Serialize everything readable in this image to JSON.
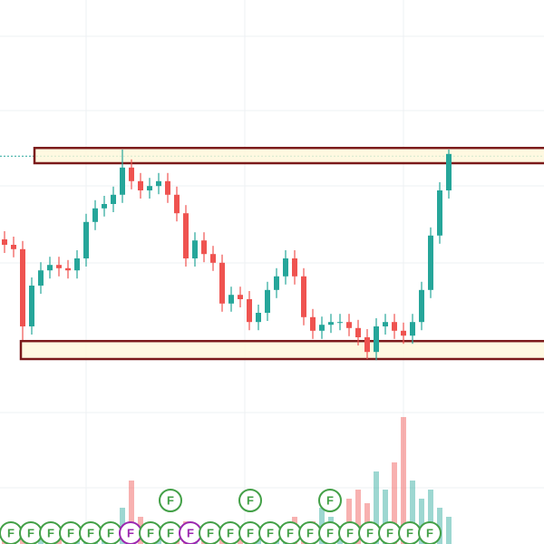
{
  "chart_data": {
    "type": "candlestick",
    "open": [
      56,
      55,
      54.2,
      40,
      47.5,
      50.3,
      51.3,
      50.7,
      50.3,
      52.5,
      59.2,
      61.7,
      62.5,
      64.2,
      69.2,
      66.7,
      65,
      65.8,
      66.7,
      64.2,
      60.8,
      52.5,
      55.8,
      53.3,
      51.7,
      44.2,
      45.8,
      45,
      40.8,
      42.5,
      46.7,
      49.2,
      52.5,
      49.2,
      41.7,
      39.2,
      40.3,
      40.8,
      40.8,
      39.7,
      38,
      35.3,
      40,
      40.8,
      39.2,
      38.3,
      40.8,
      46.7,
      56.7,
      65
    ],
    "high": [
      57.5,
      56.5,
      55.7,
      49,
      51.8,
      52.8,
      52.8,
      52.2,
      54,
      60.7,
      63.2,
      64,
      65.7,
      72.5,
      70.7,
      68.2,
      67.3,
      68.2,
      68.2,
      65.7,
      62.3,
      57.3,
      57.3,
      54.8,
      53.2,
      47.3,
      47.3,
      46.5,
      44,
      48.2,
      50.7,
      54,
      54,
      50.7,
      43.2,
      41.8,
      42.3,
      42.3,
      42.3,
      41.2,
      39.5,
      41.5,
      42.3,
      42.3,
      40.7,
      42.3,
      48.2,
      58.2,
      66.5,
      72.5
    ],
    "low": [
      53.5,
      52.7,
      37.5,
      38.5,
      46,
      48.8,
      49.2,
      48.8,
      48.8,
      51,
      57.7,
      60.2,
      61,
      62.7,
      65.2,
      63.5,
      63.5,
      64.3,
      62.7,
      59.3,
      51,
      51,
      51.8,
      50.2,
      42.7,
      42.7,
      43.5,
      39.3,
      39.3,
      41,
      45.2,
      47.7,
      47.7,
      40.2,
      37.7,
      37.7,
      38.8,
      39.3,
      38.2,
      36.5,
      34,
      33.8,
      38.5,
      37.7,
      36.8,
      36.8,
      39.3,
      45.2,
      55.2,
      63.5
    ],
    "close": [
      55,
      54.2,
      40,
      47.5,
      50.3,
      51.3,
      50.7,
      50.3,
      52.5,
      59.2,
      61.7,
      62.5,
      64.2,
      69.2,
      66.7,
      65,
      65.8,
      66.7,
      64.2,
      60.8,
      52.5,
      55.8,
      53.3,
      51.7,
      44.2,
      45.8,
      45,
      40.8,
      42.5,
      46.7,
      49.2,
      52.5,
      49.2,
      41.7,
      39.2,
      40.3,
      40.8,
      40.8,
      39.7,
      38,
      35.3,
      40,
      40.8,
      39.2,
      38.3,
      40.8,
      46.7,
      56.7,
      65,
      71.7
    ],
    "volume": [
      10,
      8,
      12,
      10,
      8,
      6,
      8,
      6,
      8,
      10,
      12,
      15,
      20,
      40,
      70,
      30,
      20,
      15,
      10,
      12,
      25,
      15,
      10,
      8,
      12,
      10,
      8,
      15,
      10,
      12,
      10,
      15,
      30,
      20,
      25,
      40,
      30,
      20,
      50,
      60,
      45,
      80,
      60,
      90,
      140,
      70,
      50,
      60,
      40,
      30
    ],
    "up_color": "#26a69a",
    "down_color": "#ef5350",
    "ylim": [
      0,
      100
    ],
    "y2lim": [
      0,
      200
    ],
    "price_line": 71.3,
    "zones": [
      [
        70,
        72.8
      ],
      [
        34,
        37.3
      ]
    ],
    "zone_color": "#7b1a1a",
    "zone_fill": "#fff8d9",
    "markers": [
      {
        "label": "F",
        "color": "#43a047"
      },
      {
        "label": "F",
        "color": "#43a047"
      },
      {
        "label": "F",
        "color": "#43a047"
      },
      {
        "label": "F",
        "color": "#43a047"
      },
      {
        "label": "F",
        "color": "#43a047"
      },
      {
        "label": "F",
        "color": "#43a047"
      },
      {
        "label": "F",
        "color": "#9c27b0"
      },
      {
        "label": "F",
        "color": "#43a047"
      },
      {
        "label": "F",
        "color": "#43a047"
      },
      {
        "label": "F",
        "color": "#9c27b0"
      },
      {
        "label": "F",
        "color": "#43a047"
      },
      {
        "label": "F",
        "color": "#43a047"
      },
      {
        "label": "F",
        "color": "#43a047"
      },
      {
        "label": "F",
        "color": "#43a047"
      },
      {
        "label": "F",
        "color": "#43a047"
      },
      {
        "label": "F",
        "color": "#43a047"
      },
      {
        "label": "F",
        "color": "#43a047"
      },
      {
        "label": "F",
        "color": "#43a047"
      },
      {
        "label": "F",
        "color": "#43a047"
      },
      {
        "label": "F",
        "color": "#43a047"
      },
      {
        "label": "F",
        "color": "#43a047"
      },
      {
        "label": "F",
        "color": "#43a047"
      }
    ],
    "upper_markers": [
      {
        "label": "F",
        "color": "#43a047"
      },
      {
        "label": "F",
        "color": "#43a047"
      },
      {
        "label": "F",
        "color": "#43a047"
      }
    ]
  }
}
